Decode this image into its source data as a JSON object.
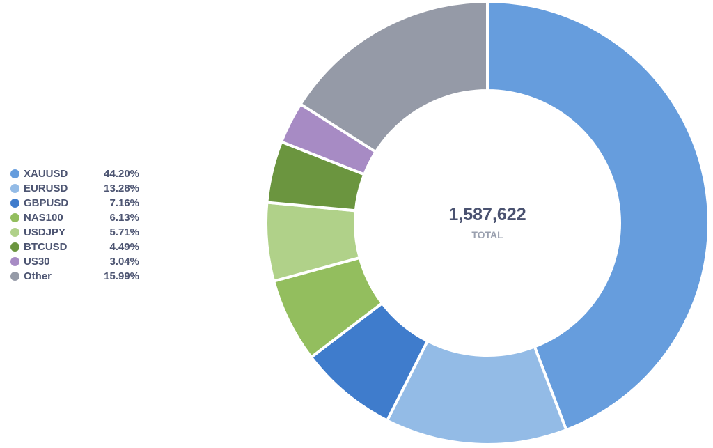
{
  "chart_data": {
    "type": "pie",
    "variant": "donut",
    "categories": [
      "XAUUSD",
      "EURUSD",
      "GBPUSD",
      "NAS100",
      "USDJPY",
      "BTCUSD",
      "US30",
      "Other"
    ],
    "values": [
      44.2,
      13.28,
      7.16,
      6.13,
      5.71,
      4.49,
      3.04,
      15.99
    ],
    "labels": [
      "44.20%",
      "13.28%",
      "7.16%",
      "6.13%",
      "5.71%",
      "4.49%",
      "3.04%",
      "15.99%"
    ],
    "colors": [
      "#669ddd",
      "#93bbe6",
      "#3f7ccc",
      "#93be5e",
      "#b0d189",
      "#6b953f",
      "#a78bc4",
      "#959aa7"
    ],
    "center_value": "1,587,622",
    "center_label": "TOTAL",
    "legend_position": "left"
  }
}
